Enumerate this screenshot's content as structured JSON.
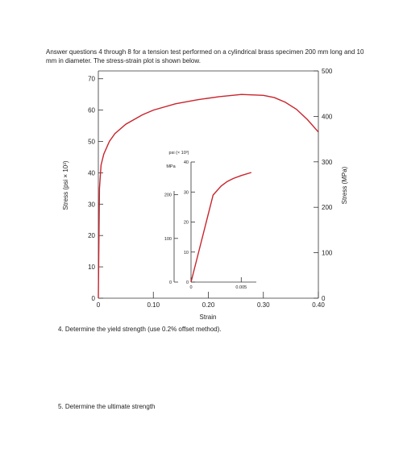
{
  "intro_text": "Answer questions 4 through 8 for a tension test performed on a cylindrical brass specimen 200 mm long and 10 mm in diameter. The stress-strain plot is shown below.",
  "questions": [
    "4.  Determine the yield strength (use 0.2% offset method).",
    "5.  Determine the ultimate strength"
  ],
  "chart_data": [
    {
      "type": "line",
      "name": "main",
      "xlabel": "Strain",
      "ylabel_left": "Stress (psi × 10³)",
      "ylabel_right": "Stress (MPa)",
      "xlim": [
        0,
        0.4
      ],
      "ylim_left": [
        0,
        72.5
      ],
      "ylim_right": [
        0,
        500
      ],
      "x_ticks": [
        "0",
        "0.10",
        "0.20",
        "0.30",
        "0.40"
      ],
      "y_ticks_left": [
        "0",
        "10",
        "20",
        "30",
        "40",
        "50",
        "60",
        "70"
      ],
      "y_ticks_right": [
        "0",
        "100",
        "200",
        "300",
        "400",
        "500"
      ],
      "series": [
        {
          "x": [
            0,
            0.002,
            0.005,
            0.01,
            0.02,
            0.03,
            0.05,
            0.08,
            0.1,
            0.14,
            0.18,
            0.22,
            0.26,
            0.3,
            0.32,
            0.34,
            0.36,
            0.38,
            0.4
          ],
          "y": [
            0,
            35,
            42.5,
            46,
            50,
            52.5,
            55.5,
            58.5,
            60,
            62,
            63.3,
            64.3,
            65,
            64.7,
            64,
            62.5,
            60.3,
            57,
            53
          ]
        }
      ]
    },
    {
      "type": "line",
      "name": "inset",
      "xlim": [
        0,
        0.0065
      ],
      "ylim_left": [
        0,
        40
      ],
      "ylim_right": [
        0,
        275
      ],
      "left_unit": "psi (× 10³)",
      "right_unit": "MPa",
      "x_ticks": [
        "0",
        "0.005"
      ],
      "y_ticks_left": [
        "0",
        "10",
        "20",
        "30",
        "40"
      ],
      "y_ticks_right": [
        "0",
        "100",
        "200"
      ],
      "series": [
        {
          "x": [
            0,
            0.0022,
            0.003,
            0.0036,
            0.0042,
            0.005,
            0.006
          ],
          "y": [
            0,
            29,
            32,
            33.5,
            34.5,
            35.5,
            36.5
          ]
        }
      ]
    }
  ]
}
